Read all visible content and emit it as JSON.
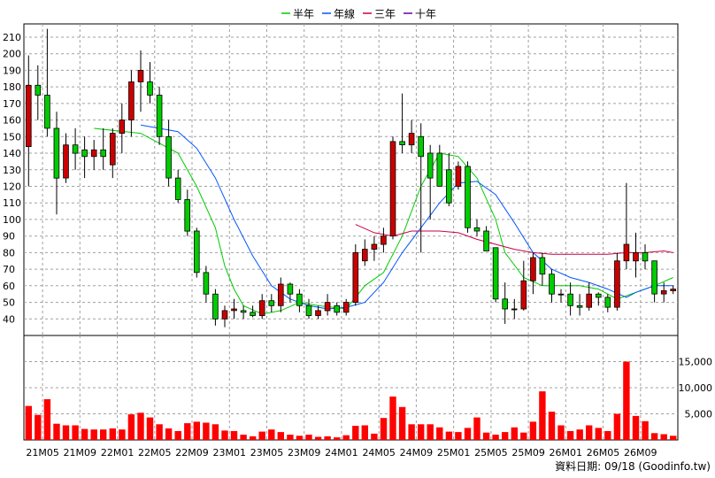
{
  "chart_data": {
    "type": "candlestick",
    "legend": [
      {
        "name": "半年",
        "color": "#00cc00"
      },
      {
        "name": "年線",
        "color": "#0055ff"
      },
      {
        "name": "三年",
        "color": "#cc0044"
      },
      {
        "name": "十年",
        "color": "#660099"
      }
    ],
    "price_axis": {
      "ticks": [
        40,
        50,
        60,
        70,
        80,
        90,
        100,
        110,
        120,
        130,
        140,
        150,
        160,
        170,
        180,
        190,
        200,
        210
      ],
      "range": [
        30,
        218
      ]
    },
    "volume_axis": {
      "ticks": [
        "5,000",
        "10,000",
        "15,000"
      ],
      "values": [
        5000,
        10000,
        15000
      ],
      "range": [
        0,
        20000
      ]
    },
    "x_labels": [
      "21M05",
      "21M09",
      "22M01",
      "22M05",
      "22M09",
      "23M01",
      "23M05",
      "23M09",
      "24M01",
      "24M05",
      "24M09",
      "25M01",
      "25M05",
      "25M09",
      "26M01",
      "26M05",
      "26M09"
    ],
    "candles": [
      [
        144,
        181,
        120,
        199
      ],
      [
        181,
        175,
        160,
        193
      ],
      [
        175,
        155,
        150,
        215
      ],
      [
        155,
        125,
        103,
        165
      ],
      [
        125,
        145,
        122,
        152
      ],
      [
        145,
        140,
        130,
        155
      ],
      [
        142,
        138,
        125,
        150
      ],
      [
        138,
        142,
        130,
        148
      ],
      [
        142,
        138,
        130,
        155
      ],
      [
        133,
        152,
        125,
        155
      ],
      [
        152,
        160,
        140,
        170
      ],
      [
        160,
        183,
        150,
        190
      ],
      [
        183,
        190,
        165,
        202
      ],
      [
        183,
        175,
        170,
        195
      ],
      [
        175,
        150,
        145,
        180
      ],
      [
        150,
        125,
        120,
        160
      ],
      [
        125,
        112,
        110,
        130
      ],
      [
        112,
        93,
        90,
        118
      ],
      [
        93,
        68,
        65,
        95
      ],
      [
        68,
        55,
        50,
        72
      ],
      [
        55,
        40,
        36,
        58
      ],
      [
        40,
        45,
        35,
        48
      ],
      [
        45,
        46,
        40,
        52
      ],
      [
        45,
        44,
        40,
        48
      ],
      [
        44,
        42,
        41,
        48
      ],
      [
        42,
        51,
        40,
        55
      ],
      [
        51,
        48,
        44,
        55
      ],
      [
        48,
        61,
        44,
        65
      ],
      [
        61,
        55,
        50,
        62
      ],
      [
        55,
        48,
        44,
        58
      ],
      [
        48,
        42,
        40,
        52
      ],
      [
        42,
        45,
        40,
        48
      ],
      [
        45,
        50,
        42,
        55
      ],
      [
        48,
        44,
        42,
        50
      ],
      [
        44,
        50,
        42,
        52
      ],
      [
        50,
        80,
        48,
        85
      ],
      [
        75,
        82,
        72,
        88
      ],
      [
        82,
        85,
        75,
        90
      ],
      [
        85,
        90,
        80,
        95
      ],
      [
        90,
        147,
        88,
        150
      ],
      [
        147,
        145,
        140,
        176
      ],
      [
        145,
        152,
        140,
        160
      ],
      [
        150,
        138,
        80,
        158
      ],
      [
        140,
        125,
        100,
        145
      ],
      [
        140,
        120,
        120,
        145
      ],
      [
        130,
        110,
        108,
        140
      ],
      [
        120,
        132,
        118,
        135
      ],
      [
        132,
        95,
        92,
        135
      ],
      [
        95,
        93,
        90,
        100
      ],
      [
        93,
        81,
        81,
        96
      ],
      [
        83,
        52,
        50,
        83
      ],
      [
        52,
        46,
        37,
        62
      ],
      [
        46,
        46,
        40,
        52
      ],
      [
        46,
        63,
        45,
        75
      ],
      [
        63,
        77,
        55,
        80
      ],
      [
        77,
        67,
        60,
        80
      ],
      [
        67,
        55,
        50,
        70
      ],
      [
        55,
        55,
        50,
        58
      ],
      [
        55,
        48,
        42,
        62
      ],
      [
        48,
        47,
        42,
        55
      ],
      [
        47,
        55,
        45,
        62
      ],
      [
        55,
        53,
        48,
        56
      ],
      [
        53,
        47,
        44,
        55
      ],
      [
        47,
        75,
        45,
        80
      ],
      [
        75,
        85,
        70,
        122
      ],
      [
        75,
        80,
        65,
        92
      ],
      [
        80,
        75,
        70,
        85
      ],
      [
        75,
        55,
        50,
        75
      ],
      [
        55,
        57,
        50,
        62
      ],
      [
        57,
        58,
        55,
        60
      ]
    ],
    "volume": [
      6500,
      4800,
      7800,
      3100,
      2800,
      2800,
      2100,
      2000,
      2000,
      2200,
      2000,
      4900,
      5200,
      4300,
      3000,
      2200,
      1700,
      3200,
      3500,
      3300,
      3000,
      1800,
      1700,
      1000,
      700,
      1600,
      2000,
      1500,
      1000,
      800,
      1000,
      600,
      700,
      500,
      900,
      2700,
      2800,
      1200,
      4200,
      8300,
      6300,
      3000,
      3000,
      3000,
      2400,
      1600,
      1500,
      2300,
      4300,
      1400,
      1000,
      1500,
      2400,
      1400,
      3500,
      9300,
      5400,
      2800,
      1700,
      2000,
      2800,
      2300,
      1700,
      5000,
      15000,
      4600,
      3600,
      1300,
      1100,
      800
    ],
    "lines": {
      "half_year": [
        [
          7,
          155
        ],
        [
          12,
          152
        ],
        [
          16,
          140
        ],
        [
          18,
          120
        ],
        [
          20,
          95
        ],
        [
          21,
          72
        ],
        [
          22,
          58
        ],
        [
          23,
          48
        ],
        [
          25,
          43
        ],
        [
          27,
          45
        ],
        [
          29,
          50
        ],
        [
          31,
          48
        ],
        [
          34,
          46
        ],
        [
          35,
          53
        ],
        [
          36,
          60
        ],
        [
          38,
          68
        ],
        [
          40,
          90
        ],
        [
          42,
          120
        ],
        [
          44,
          140
        ],
        [
          46,
          138
        ],
        [
          48,
          125
        ],
        [
          50,
          100
        ],
        [
          51,
          80
        ],
        [
          53,
          65
        ],
        [
          55,
          60
        ],
        [
          57,
          60
        ],
        [
          59,
          60
        ],
        [
          61,
          58
        ],
        [
          62,
          55
        ],
        [
          63,
          52
        ],
        [
          65,
          56
        ],
        [
          67,
          60
        ],
        [
          69,
          65
        ]
      ],
      "year": [
        [
          12,
          157
        ],
        [
          14,
          155
        ],
        [
          16,
          153
        ],
        [
          18,
          143
        ],
        [
          20,
          125
        ],
        [
          22,
          100
        ],
        [
          24,
          78
        ],
        [
          26,
          60
        ],
        [
          28,
          52
        ],
        [
          30,
          48
        ],
        [
          32,
          46
        ],
        [
          34,
          47
        ],
        [
          36,
          50
        ],
        [
          38,
          62
        ],
        [
          40,
          80
        ],
        [
          42,
          95
        ],
        [
          44,
          110
        ],
        [
          46,
          122
        ],
        [
          48,
          123
        ],
        [
          50,
          115
        ],
        [
          52,
          98
        ],
        [
          54,
          80
        ],
        [
          56,
          70
        ],
        [
          58,
          65
        ],
        [
          60,
          62
        ],
        [
          62,
          58
        ],
        [
          64,
          53
        ],
        [
          65,
          56
        ],
        [
          67,
          60
        ],
        [
          69,
          60
        ]
      ],
      "three_year": [
        [
          35,
          97
        ],
        [
          37,
          92
        ],
        [
          39,
          90
        ],
        [
          41,
          93
        ],
        [
          44,
          93
        ],
        [
          46,
          92
        ],
        [
          48,
          88
        ],
        [
          50,
          85
        ],
        [
          52,
          82
        ],
        [
          54,
          80
        ],
        [
          56,
          79
        ],
        [
          58,
          79
        ],
        [
          60,
          79
        ],
        [
          62,
          79
        ],
        [
          64,
          80
        ],
        [
          66,
          80
        ],
        [
          68,
          81
        ],
        [
          69,
          80
        ]
      ]
    },
    "footer": "資料日期: 09/18 (Goodinfo.tw)"
  }
}
